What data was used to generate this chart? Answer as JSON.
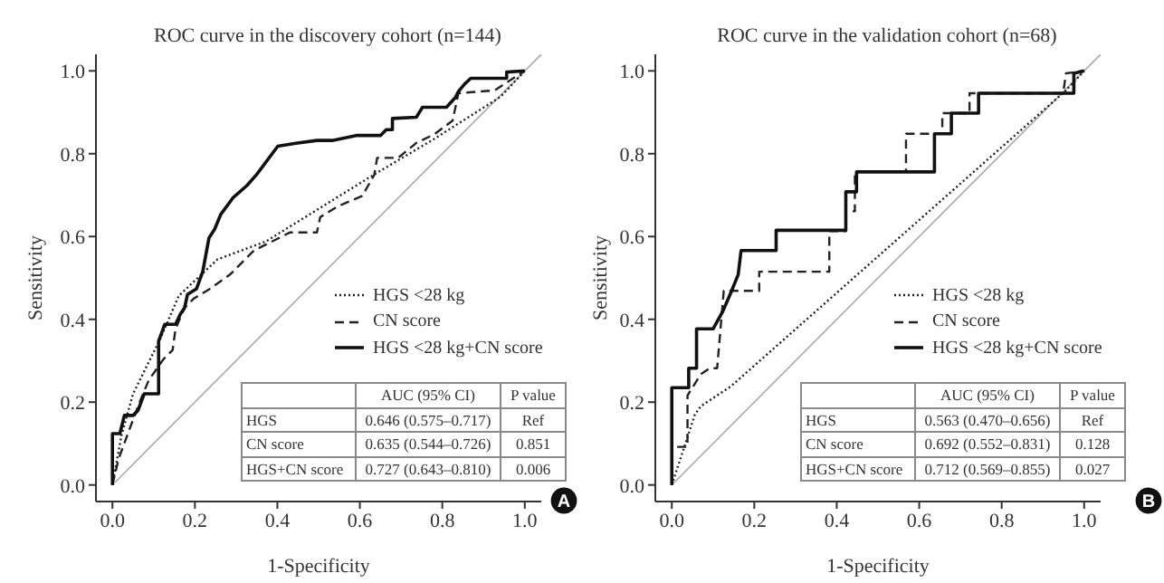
{
  "chart_data": [
    {
      "type": "line",
      "title": "ROC curve in the discovery cohort (n=144)",
      "xlabel": "1-Specificity",
      "ylabel": "Sensitivity",
      "xlim": [
        -0.04,
        1.04
      ],
      "ylim": [
        -0.04,
        1.04
      ],
      "xticks": [
        {
          "value": 0,
          "label": "0.0"
        },
        {
          "value": 0.2,
          "label": "0.2"
        },
        {
          "value": 0.4,
          "label": "0.4"
        },
        {
          "value": 0.6,
          "label": "0.6"
        },
        {
          "value": 0.8,
          "label": "0.8"
        },
        {
          "value": 1,
          "label": "1.0"
        }
      ],
      "yticks": [
        {
          "value": 0,
          "label": "0.0"
        },
        {
          "value": 0.2,
          "label": "0.2"
        },
        {
          "value": 0.4,
          "label": "0.4"
        },
        {
          "value": 0.6,
          "label": "0.6"
        },
        {
          "value": 0.8,
          "label": "0.8"
        },
        {
          "value": 1,
          "label": "1.0"
        }
      ],
      "legend": "right",
      "marker": "none",
      "series": [
        {
          "color": "#aaaaaa",
          "line_style": "solid",
          "x": [
            0,
            1.04
          ],
          "values": [
            0,
            1.04
          ]
        },
        {
          "name": "HGS <28 kg",
          "color": "#222222",
          "line_style": "dotted",
          "x": [
            0,
            0.022,
            0.05,
            0.117,
            0.161,
            0.255,
            0.372,
            0.635,
            0.781,
            0.942,
            1
          ],
          "values": [
            0,
            0.12,
            0.22,
            0.355,
            0.457,
            0.545,
            0.588,
            0.75,
            0.836,
            0.938,
            1
          ]
        },
        {
          "name": "CN score",
          "color": "#222222",
          "line_style": "dashed",
          "x": [
            0,
            0.015,
            0.036,
            0.066,
            0.088,
            0.124,
            0.146,
            0.153,
            0.175,
            0.197,
            0.234,
            0.285,
            0.343,
            0.387,
            0.431,
            0.496,
            0.504,
            0.547,
            0.606,
            0.635,
            0.642,
            0.693,
            0.737,
            0.781,
            0.825,
            0.839,
            0.927,
            1
          ],
          "values": [
            0,
            0.063,
            0.12,
            0.2,
            0.253,
            0.304,
            0.326,
            0.377,
            0.428,
            0.45,
            0.472,
            0.508,
            0.566,
            0.588,
            0.61,
            0.61,
            0.647,
            0.673,
            0.698,
            0.749,
            0.79,
            0.79,
            0.826,
            0.847,
            0.88,
            0.946,
            0.953,
            1
          ]
        },
        {
          "name": "HGS <28 kg+CN score",
          "color": "#111111",
          "line_style": "solid",
          "x": [
            0,
            0,
            0.018,
            0.029,
            0.05,
            0.062,
            0.077,
            0.112,
            0.112,
            0.127,
            0.153,
            0.165,
            0.175,
            0.182,
            0.204,
            0.219,
            0.234,
            0.248,
            0.263,
            0.292,
            0.326,
            0.35,
            0.401,
            0.445,
            0.496,
            0.533,
            0.591,
            0.65,
            0.664,
            0.679,
            0.679,
            0.737,
            0.752,
            0.81,
            0.832,
            0.839,
            0.854,
            0.869,
            0.956,
            0.956,
            1
          ],
          "values": [
            0,
            0.124,
            0.124,
            0.168,
            0.168,
            0.18,
            0.22,
            0.22,
            0.347,
            0.388,
            0.388,
            0.413,
            0.428,
            0.46,
            0.474,
            0.515,
            0.596,
            0.618,
            0.654,
            0.693,
            0.723,
            0.75,
            0.818,
            0.825,
            0.832,
            0.832,
            0.844,
            0.844,
            0.858,
            0.858,
            0.885,
            0.888,
            0.912,
            0.912,
            0.936,
            0.95,
            0.968,
            0.982,
            0.982,
            0.997,
            1
          ]
        }
      ],
      "annotations": [
        "AUC (95% CI)",
        "P value",
        "HGS",
        "0.646 (0.575–0.717)",
        "Ref",
        "CN score",
        "0.635 (0.544–0.726)",
        "0.851",
        "HGS+CN score",
        "0.727 (0.643–0.810)",
        "0.006",
        "A"
      ]
    },
    {
      "type": "line",
      "title": "ROC curve in the validation cohort (n=68)",
      "xlabel": "1-Specificity",
      "ylabel": "Sensitivity",
      "xlim": [
        -0.04,
        1.04
      ],
      "ylim": [
        -0.04,
        1.04
      ],
      "xticks": [
        {
          "value": 0,
          "label": "0.0"
        },
        {
          "value": 0.2,
          "label": "0.2"
        },
        {
          "value": 0.4,
          "label": "0.4"
        },
        {
          "value": 0.6,
          "label": "0.6"
        },
        {
          "value": 0.8,
          "label": "0.8"
        },
        {
          "value": 1,
          "label": "1.0"
        }
      ],
      "yticks": [
        {
          "value": 0,
          "label": "0.0"
        },
        {
          "value": 0.2,
          "label": "0.2"
        },
        {
          "value": 0.4,
          "label": "0.4"
        },
        {
          "value": 0.6,
          "label": "0.6"
        },
        {
          "value": 0.8,
          "label": "0.8"
        },
        {
          "value": 1,
          "label": "1.0"
        }
      ],
      "legend": "right",
      "marker": "none",
      "series": [
        {
          "color": "#aaaaaa",
          "line_style": "solid",
          "x": [
            0,
            1.04
          ],
          "values": [
            0,
            1.04
          ]
        },
        {
          "name": "HGS <28 kg",
          "color": "#222222",
          "line_style": "dotted",
          "x": [
            0,
            0.056,
            0.07,
            0.143,
            0.956,
            1
          ],
          "values": [
            0,
            0.17,
            0.19,
            0.238,
            0.953,
            1
          ]
        },
        {
          "name": "CN score",
          "color": "#222222",
          "line_style": "dashed",
          "x": [
            0,
            0,
            0.038,
            0.038,
            0.07,
            0.092,
            0.11,
            0.126,
            0.212,
            0.212,
            0.382,
            0.382,
            0.422,
            0.422,
            0.444,
            0.444,
            0.568,
            0.568,
            0.656,
            0.656,
            0.722,
            0.722,
            0.949,
            0.956,
            1
          ],
          "values": [
            0,
            0.092,
            0.092,
            0.216,
            0.267,
            0.282,
            0.282,
            0.469,
            0.469,
            0.515,
            0.515,
            0.613,
            0.613,
            0.661,
            0.661,
            0.756,
            0.756,
            0.848,
            0.848,
            0.898,
            0.898,
            0.946,
            0.946,
            0.994,
            1
          ]
        },
        {
          "name": "HGS <28 kg+CN score",
          "color": "#111111",
          "line_style": "solid",
          "x": [
            0,
            0,
            0.041,
            0.041,
            0.06,
            0.06,
            0.1,
            0.124,
            0.143,
            0.161,
            0.168,
            0.253,
            0.253,
            0.422,
            0.422,
            0.448,
            0.448,
            0.637,
            0.637,
            0.678,
            0.678,
            0.744,
            0.744,
            0.975,
            0.975,
            1
          ],
          "values": [
            0,
            0.235,
            0.235,
            0.282,
            0.282,
            0.377,
            0.377,
            0.42,
            0.464,
            0.508,
            0.566,
            0.566,
            0.615,
            0.615,
            0.708,
            0.708,
            0.756,
            0.756,
            0.848,
            0.848,
            0.898,
            0.898,
            0.946,
            0.946,
            0.994,
            1
          ]
        }
      ],
      "annotations": [
        "AUC (95% CI)",
        "P value",
        "HGS",
        "0.563 (0.470–0.656)",
        "Ref",
        "CN score",
        "0.692 (0.552–0.831)",
        "0.128",
        "HGS+CN score",
        "0.712 (0.569–0.855)",
        "0.027",
        "B"
      ]
    }
  ]
}
